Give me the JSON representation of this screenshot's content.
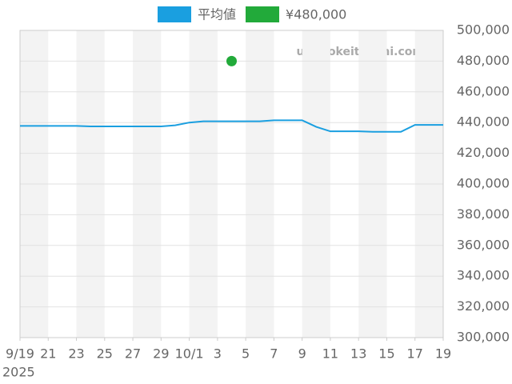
{
  "chart_data": {
    "type": "line",
    "x": [
      "2025-09-19",
      "2025-09-20",
      "2025-09-21",
      "2025-09-22",
      "2025-09-23",
      "2025-09-24",
      "2025-09-25",
      "2025-09-26",
      "2025-09-27",
      "2025-09-28",
      "2025-09-29",
      "2025-09-30",
      "2025-10-01",
      "2025-10-02",
      "2025-10-03",
      "2025-10-04",
      "2025-10-05",
      "2025-10-06",
      "2025-10-07",
      "2025-10-08",
      "2025-10-09",
      "2025-10-10",
      "2025-10-11",
      "2025-10-12",
      "2025-10-13",
      "2025-10-14",
      "2025-10-15",
      "2025-10-16",
      "2025-10-17",
      "2025-10-18",
      "2025-10-19"
    ],
    "series": [
      {
        "name": "平均値",
        "color": "#1a9fe0",
        "mode": "line",
        "values": [
          437800,
          437800,
          437800,
          437800,
          437800,
          437500,
          437500,
          437500,
          437500,
          437500,
          437500,
          438200,
          440000,
          440800,
          440800,
          440800,
          440800,
          440800,
          441500,
          441500,
          441500,
          437200,
          434300,
          434300,
          434300,
          434000,
          434000,
          434000,
          438500,
          438500,
          438500
        ]
      },
      {
        "name": "¥480,000",
        "color": "#22aa3a",
        "mode": "point",
        "values": [
          null,
          null,
          null,
          null,
          null,
          null,
          null,
          null,
          null,
          null,
          null,
          null,
          null,
          null,
          null,
          480000,
          null,
          null,
          null,
          null,
          null,
          null,
          null,
          null,
          null,
          null,
          null,
          null,
          null,
          null,
          null
        ]
      }
    ],
    "xlim": [
      "2025-09-19",
      "2025-10-19"
    ],
    "xticks": [
      {
        "value": "2025-09-19",
        "label": "9/19"
      },
      {
        "value": "2025-09-21",
        "label": "21"
      },
      {
        "value": "2025-09-23",
        "label": "23"
      },
      {
        "value": "2025-09-25",
        "label": "25"
      },
      {
        "value": "2025-09-27",
        "label": "27"
      },
      {
        "value": "2025-09-29",
        "label": "29"
      },
      {
        "value": "2025-10-01",
        "label": "10/1"
      },
      {
        "value": "2025-10-03",
        "label": "3"
      },
      {
        "value": "2025-10-05",
        "label": "5"
      },
      {
        "value": "2025-10-07",
        "label": "7"
      },
      {
        "value": "2025-10-09",
        "label": "9"
      },
      {
        "value": "2025-10-11",
        "label": "11"
      },
      {
        "value": "2025-10-13",
        "label": "13"
      },
      {
        "value": "2025-10-15",
        "label": "15"
      },
      {
        "value": "2025-10-17",
        "label": "17"
      },
      {
        "value": "2025-10-19",
        "label": "19"
      }
    ],
    "x_year": "2025",
    "ylim": [
      300000,
      500000
    ],
    "yticks": [
      {
        "value": 300000,
        "label": "300,000"
      },
      {
        "value": 320000,
        "label": "320,000"
      },
      {
        "value": 340000,
        "label": "340,000"
      },
      {
        "value": 360000,
        "label": "360,000"
      },
      {
        "value": 380000,
        "label": "380,000"
      },
      {
        "value": 400000,
        "label": "400,000"
      },
      {
        "value": 420000,
        "label": "420,000"
      },
      {
        "value": 440000,
        "label": "440,000"
      },
      {
        "value": 460000,
        "label": "460,000"
      },
      {
        "value": 480000,
        "label": "480,000"
      },
      {
        "value": 500000,
        "label": "500,000"
      }
    ],
    "grid": true,
    "watermark": "udedokeitoushi.com"
  }
}
